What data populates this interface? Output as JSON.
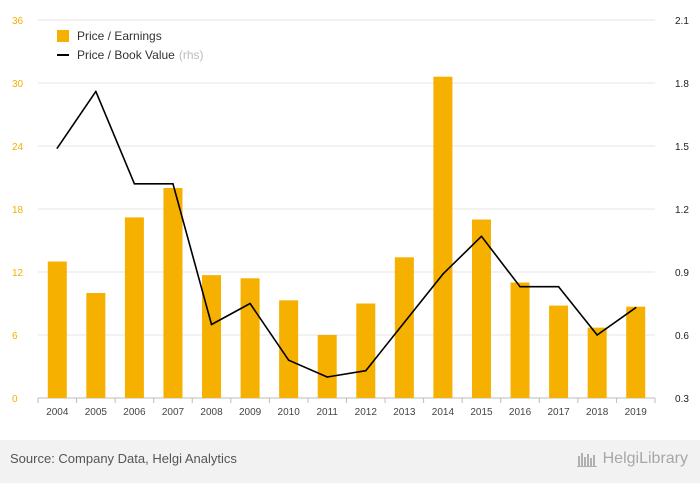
{
  "chart_data": {
    "type": "bar",
    "categories": [
      "2004",
      "2005",
      "2006",
      "2007",
      "2008",
      "2009",
      "2010",
      "2011",
      "2012",
      "2013",
      "2014",
      "2015",
      "2016",
      "2017",
      "2018",
      "2019"
    ],
    "series": [
      {
        "name": "Price / Earnings",
        "type": "bar",
        "axis": "left",
        "color": "#F5B000",
        "values": [
          13.0,
          10.0,
          17.2,
          20.0,
          11.7,
          11.4,
          9.3,
          6.0,
          9.0,
          13.4,
          30.6,
          17.0,
          11.0,
          8.8,
          6.7,
          8.7
        ]
      },
      {
        "name": "Price / Book Value",
        "type": "line",
        "axis": "right",
        "color": "#000000",
        "values": [
          1.49,
          1.76,
          1.32,
          1.32,
          0.65,
          0.75,
          0.48,
          0.4,
          0.43,
          0.66,
          0.89,
          1.07,
          0.83,
          0.83,
          0.6,
          0.73
        ]
      }
    ],
    "legend": [
      {
        "label": "Price / Earnings",
        "suffix": ""
      },
      {
        "label": "Price / Book Value",
        "suffix": "(rhs)"
      }
    ],
    "legend_position": "top-left",
    "y_left": {
      "min": 0,
      "max": 36,
      "ticks": [
        "0",
        "6",
        "12",
        "18",
        "24",
        "30",
        "36"
      ],
      "color": "#F5B000"
    },
    "y_right": {
      "min": 0.3,
      "max": 2.1,
      "ticks": [
        "0.3",
        "0.6",
        "0.9",
        "1.2",
        "1.5",
        "1.8",
        "2.1"
      ]
    },
    "grid": true
  },
  "footer": {
    "source": "Source: Company Data, Helgi Analytics",
    "logo_text": "HelgiLibrary"
  }
}
